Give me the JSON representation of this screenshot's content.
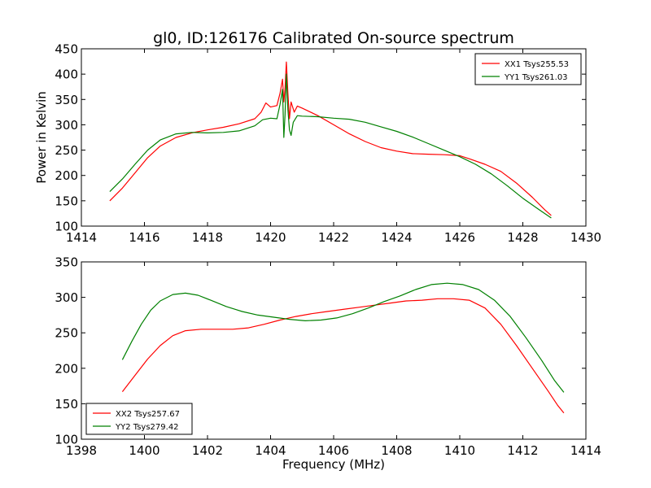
{
  "figure": {
    "title": "gl0, ID:126176 Calibrated On-source spectrum",
    "ylabel": "Power in Kelvin",
    "xlabel": "Frequency (MHz)"
  },
  "chart_data": [
    {
      "type": "line",
      "xlim": [
        1414,
        1430
      ],
      "ylim": [
        100,
        450
      ],
      "xticks": [
        1414,
        1416,
        1418,
        1420,
        1422,
        1424,
        1426,
        1428,
        1430
      ],
      "yticks": [
        100,
        150,
        200,
        250,
        300,
        350,
        400,
        450
      ],
      "legend_position": "top-right",
      "series": [
        {
          "name": "XX1 Tsys255.53",
          "color": "#ff0000",
          "points": [
            [
              1414.9,
              150
            ],
            [
              1415.3,
              175
            ],
            [
              1415.7,
              205
            ],
            [
              1416.1,
              235
            ],
            [
              1416.5,
              258
            ],
            [
              1417.0,
              275
            ],
            [
              1417.5,
              284
            ],
            [
              1418.0,
              290
            ],
            [
              1418.5,
              295
            ],
            [
              1419.0,
              302
            ],
            [
              1419.5,
              312
            ],
            [
              1419.7,
              325
            ],
            [
              1419.85,
              343
            ],
            [
              1420.0,
              335
            ],
            [
              1420.2,
              338
            ],
            [
              1420.3,
              362
            ],
            [
              1420.38,
              390
            ],
            [
              1420.42,
              345
            ],
            [
              1420.46,
              372
            ],
            [
              1420.5,
              424
            ],
            [
              1420.55,
              362
            ],
            [
              1420.6,
              312
            ],
            [
              1420.65,
              345
            ],
            [
              1420.75,
              325
            ],
            [
              1420.85,
              337
            ],
            [
              1421.0,
              333
            ],
            [
              1421.5,
              318
            ],
            [
              1422.0,
              300
            ],
            [
              1422.5,
              282
            ],
            [
              1423.0,
              267
            ],
            [
              1423.5,
              255
            ],
            [
              1424.0,
              248
            ],
            [
              1424.5,
              243
            ],
            [
              1425.0,
              242
            ],
            [
              1425.5,
              241
            ],
            [
              1426.0,
              239
            ],
            [
              1426.3,
              233
            ],
            [
              1426.8,
              222
            ],
            [
              1427.3,
              208
            ],
            [
              1427.8,
              185
            ],
            [
              1428.3,
              157
            ],
            [
              1428.7,
              132
            ],
            [
              1428.9,
              121
            ]
          ]
        },
        {
          "name": "YY1 Tsys261.03",
          "color": "#008000",
          "points": [
            [
              1414.9,
              168
            ],
            [
              1415.3,
              193
            ],
            [
              1415.7,
              222
            ],
            [
              1416.1,
              250
            ],
            [
              1416.5,
              270
            ],
            [
              1417.0,
              282
            ],
            [
              1417.5,
              285
            ],
            [
              1418.0,
              284
            ],
            [
              1418.5,
              285
            ],
            [
              1419.0,
              288
            ],
            [
              1419.5,
              298
            ],
            [
              1419.75,
              310
            ],
            [
              1420.0,
              313
            ],
            [
              1420.2,
              312
            ],
            [
              1420.3,
              340
            ],
            [
              1420.38,
              370
            ],
            [
              1420.42,
              275
            ],
            [
              1420.46,
              320
            ],
            [
              1420.5,
              400
            ],
            [
              1420.55,
              330
            ],
            [
              1420.6,
              290
            ],
            [
              1420.65,
              279
            ],
            [
              1420.72,
              305
            ],
            [
              1420.85,
              318
            ],
            [
              1421.0,
              317
            ],
            [
              1421.5,
              316
            ],
            [
              1422.0,
              313
            ],
            [
              1422.5,
              311
            ],
            [
              1423.0,
              305
            ],
            [
              1423.5,
              296
            ],
            [
              1424.0,
              287
            ],
            [
              1424.5,
              276
            ],
            [
              1425.0,
              263
            ],
            [
              1425.5,
              250
            ],
            [
              1426.0,
              237
            ],
            [
              1426.5,
              222
            ],
            [
              1427.0,
              203
            ],
            [
              1427.5,
              180
            ],
            [
              1428.0,
              155
            ],
            [
              1428.5,
              133
            ],
            [
              1428.9,
              116
            ]
          ]
        }
      ]
    },
    {
      "type": "line",
      "xlim": [
        1398,
        1414
      ],
      "ylim": [
        100,
        350
      ],
      "xticks": [
        1398,
        1400,
        1402,
        1404,
        1406,
        1408,
        1410,
        1412,
        1414
      ],
      "yticks": [
        100,
        150,
        200,
        250,
        300,
        350
      ],
      "legend_position": "bottom-left",
      "series": [
        {
          "name": "XX2 Tsys257.67",
          "color": "#ff0000",
          "points": [
            [
              1399.3,
              167
            ],
            [
              1399.7,
              190
            ],
            [
              1400.1,
              213
            ],
            [
              1400.5,
              232
            ],
            [
              1400.9,
              246
            ],
            [
              1401.3,
              253
            ],
            [
              1401.8,
              255
            ],
            [
              1402.3,
              255
            ],
            [
              1402.8,
              255
            ],
            [
              1403.3,
              257
            ],
            [
              1403.8,
              262
            ],
            [
              1404.3,
              268
            ],
            [
              1404.8,
              273
            ],
            [
              1405.3,
              277
            ],
            [
              1405.8,
              280
            ],
            [
              1406.3,
              283
            ],
            [
              1406.8,
              286
            ],
            [
              1407.3,
              289
            ],
            [
              1407.8,
              292
            ],
            [
              1408.3,
              295
            ],
            [
              1408.8,
              296
            ],
            [
              1409.3,
              298
            ],
            [
              1409.8,
              298
            ],
            [
              1410.3,
              296
            ],
            [
              1410.8,
              285
            ],
            [
              1411.3,
              262
            ],
            [
              1411.8,
              232
            ],
            [
              1412.3,
              200
            ],
            [
              1412.8,
              168
            ],
            [
              1413.1,
              148
            ],
            [
              1413.3,
              137
            ]
          ]
        },
        {
          "name": "YY2 Tsys279.42",
          "color": "#008000",
          "points": [
            [
              1399.3,
              212
            ],
            [
              1399.6,
              238
            ],
            [
              1399.9,
              262
            ],
            [
              1400.2,
              282
            ],
            [
              1400.5,
              295
            ],
            [
              1400.9,
              304
            ],
            [
              1401.3,
              306
            ],
            [
              1401.7,
              303
            ],
            [
              1402.1,
              296
            ],
            [
              1402.6,
              287
            ],
            [
              1403.1,
              280
            ],
            [
              1403.6,
              275
            ],
            [
              1404.1,
              272
            ],
            [
              1404.6,
              269
            ],
            [
              1405.1,
              267
            ],
            [
              1405.6,
              268
            ],
            [
              1406.1,
              271
            ],
            [
              1406.6,
              277
            ],
            [
              1407.1,
              285
            ],
            [
              1407.6,
              294
            ],
            [
              1408.1,
              302
            ],
            [
              1408.6,
              311
            ],
            [
              1409.1,
              318
            ],
            [
              1409.6,
              320
            ],
            [
              1410.1,
              318
            ],
            [
              1410.6,
              311
            ],
            [
              1411.1,
              296
            ],
            [
              1411.6,
              273
            ],
            [
              1412.1,
              243
            ],
            [
              1412.6,
              211
            ],
            [
              1413.0,
              183
            ],
            [
              1413.3,
              166
            ]
          ]
        }
      ]
    }
  ]
}
